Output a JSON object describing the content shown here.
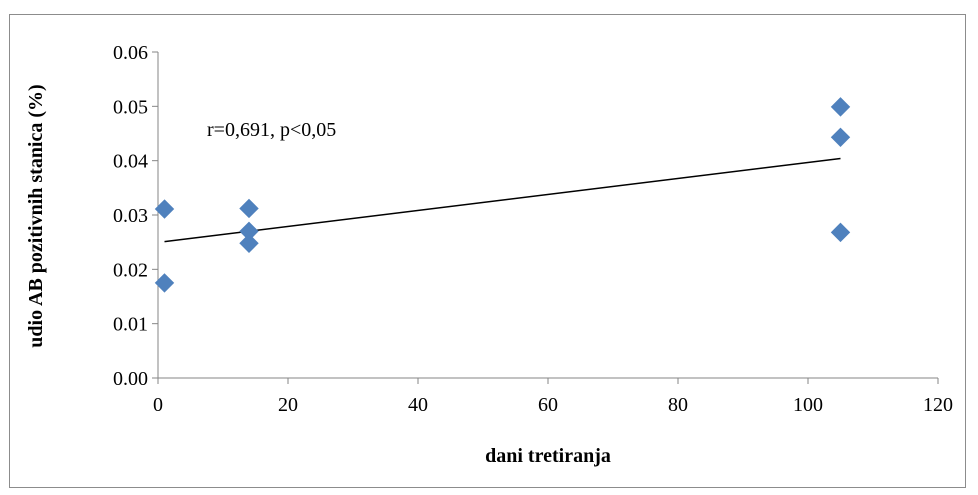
{
  "chart_data": {
    "type": "scatter",
    "title": "",
    "xlabel": "dani tretiranja",
    "ylabel": "udio AB pozitivnih stanica (%)",
    "xlim": [
      0,
      120
    ],
    "ylim": [
      0,
      0.06
    ],
    "x_ticks": [
      "0",
      "20",
      "40",
      "60",
      "80",
      "100",
      "120"
    ],
    "y_ticks": [
      "0.00",
      "0.01",
      "0.02",
      "0.03",
      "0.04",
      "0.05",
      "0.06"
    ],
    "grid": false,
    "legend": "none",
    "marker_color": "#4f81bd",
    "points": [
      {
        "x": 1,
        "y": 0.0311
      },
      {
        "x": 1,
        "y": 0.0175
      },
      {
        "x": 14,
        "y": 0.0312
      },
      {
        "x": 14,
        "y": 0.027
      },
      {
        "x": 14,
        "y": 0.0248
      },
      {
        "x": 105,
        "y": 0.0499
      },
      {
        "x": 105,
        "y": 0.0443
      },
      {
        "x": 105,
        "y": 0.0268
      }
    ],
    "trendline": {
      "x": [
        1,
        105
      ],
      "y": [
        0.0251,
        0.0404
      ]
    },
    "annotation": "r=0,691, p<0,05"
  }
}
